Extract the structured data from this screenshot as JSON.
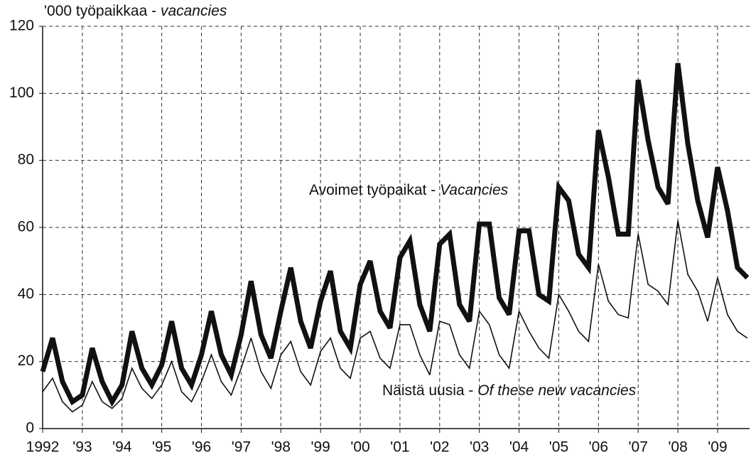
{
  "chart_data": {
    "type": "line",
    "ylabel": "'000 työpaikkaa - ",
    "ylabel_italic": "vacancies",
    "categories": [
      "1992",
      null,
      null,
      null,
      "'93",
      null,
      null,
      null,
      "'94",
      null,
      null,
      null,
      "'95",
      null,
      null,
      null,
      "'96",
      null,
      null,
      null,
      "'97",
      null,
      null,
      null,
      "'98",
      null,
      null,
      null,
      "'99",
      null,
      null,
      null,
      "'00",
      null,
      null,
      null,
      "'01",
      null,
      null,
      null,
      "'02",
      null,
      null,
      null,
      "'03",
      null,
      null,
      null,
      "'04",
      null,
      null,
      null,
      "'05",
      null,
      null,
      null,
      "'06",
      null,
      null,
      null,
      "'07",
      null,
      null,
      null,
      "'08",
      null,
      null,
      null,
      "'09",
      null,
      null,
      null
    ],
    "series": [
      {
        "name": "Avoimet työpaikat - ",
        "name_italic": "Vacancies",
        "color": "#111111",
        "width": 7,
        "values": [
          17,
          27,
          14,
          8,
          10,
          24,
          14,
          8,
          13,
          29,
          18,
          13,
          19,
          32,
          18,
          13,
          22,
          35,
          22,
          16,
          28,
          44,
          28,
          21,
          35,
          48,
          32,
          24,
          38,
          47,
          29,
          24,
          43,
          50,
          35,
          30,
          51,
          56,
          37,
          29,
          55,
          58,
          37,
          32,
          61,
          61,
          39,
          34,
          59,
          59,
          40,
          38,
          72,
          68,
          52,
          48,
          89,
          75,
          58,
          58,
          104,
          86,
          72,
          67,
          109,
          85,
          68,
          57,
          78,
          65,
          48,
          45
        ]
      },
      {
        "name": "Näistä uusia - ",
        "name_italic": "Of these new vacancies",
        "color": "#111111",
        "width": 1.6,
        "values": [
          11,
          15,
          8,
          5,
          7,
          14,
          8,
          6,
          9,
          18,
          12,
          9,
          13,
          20,
          11,
          8,
          14,
          22,
          14,
          10,
          18,
          27,
          17,
          12,
          22,
          26,
          17,
          13,
          23,
          27,
          18,
          15,
          27,
          29,
          21,
          18,
          31,
          31,
          22,
          16,
          32,
          31,
          22,
          18,
          35,
          31,
          22,
          18,
          35,
          29,
          24,
          21,
          40,
          35,
          29,
          26,
          49,
          38,
          34,
          33,
          58,
          43,
          41,
          37,
          62,
          46,
          41,
          32,
          45,
          34,
          29,
          27
        ]
      }
    ],
    "ylim": [
      0,
      120
    ],
    "yticks": [
      0,
      20,
      40,
      60,
      80,
      100,
      120
    ],
    "grid": true
  }
}
